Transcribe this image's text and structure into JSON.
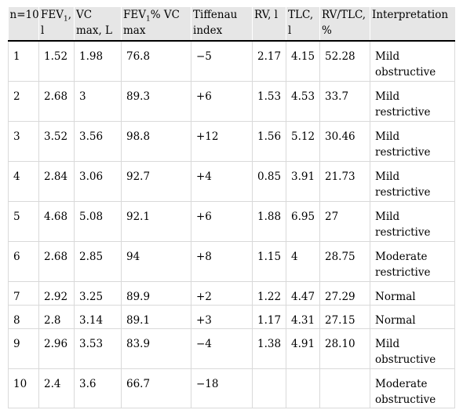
{
  "table": {
    "headers": [
      {
        "text": "n=10",
        "sub": ""
      },
      {
        "text": "FEV",
        "sub": "1",
        "after": ", l"
      },
      {
        "text": "VC max, L",
        "sub": ""
      },
      {
        "text": "FEV",
        "sub": "1",
        "after": "% VC max"
      },
      {
        "text": "Tiffenau index",
        "sub": ""
      },
      {
        "text": "RV, l",
        "sub": ""
      },
      {
        "text": "TLC, l",
        "sub": ""
      },
      {
        "text": "RV/TLC, %",
        "sub": ""
      },
      {
        "text": "Interpretation",
        "sub": ""
      }
    ],
    "rows": [
      [
        "1",
        "1.52",
        "1.98",
        "76.8",
        "−5",
        "2.17",
        "4.15",
        "52.28",
        "Mild obstructive"
      ],
      [
        "2",
        "2.68",
        "3",
        "89.3",
        "+6",
        "1.53",
        "4.53",
        "33.7",
        "Mild restrictive"
      ],
      [
        "3",
        "3.52",
        "3.56",
        "98.8",
        "+12",
        "1.56",
        "5.12",
        "30.46",
        "Mild restrictive"
      ],
      [
        "4",
        "2.84",
        "3.06",
        "92.7",
        "+4",
        "0.85",
        "3.91",
        "21.73",
        "Mild restrictive"
      ],
      [
        "5",
        "4.68",
        "5.08",
        "92.1",
        "+6",
        "1.88",
        "6.95",
        "27",
        "Mild restrictive"
      ],
      [
        "6",
        "2.68",
        "2.85",
        "94",
        "+8",
        "1.15",
        "4",
        "28.75",
        "Moderate restrictive"
      ],
      [
        "7",
        "2.92",
        "3.25",
        "89.9",
        "+2",
        "1.22",
        "4.47",
        "27.29",
        "Normal"
      ],
      [
        "8",
        "2.8",
        "3.14",
        "89.1",
        "+3",
        "1.17",
        "4.31",
        "27.15",
        "Normal"
      ],
      [
        "9",
        "2.96",
        "3.53",
        "83.9",
        "−4",
        "1.38",
        "4.91",
        "28.10",
        "Mild obstructive"
      ],
      [
        "10",
        "2.4",
        "3.6",
        "66.7",
        "−18",
        "",
        "",
        "",
        "Moderate obstructive"
      ]
    ]
  }
}
